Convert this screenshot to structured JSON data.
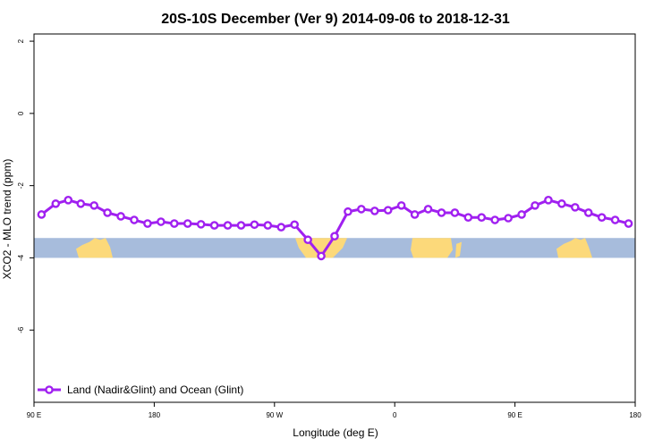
{
  "chart_data": {
    "type": "line",
    "title": "20S-10S December (Ver 9)   2014-09-06 to 2018-12-31",
    "xlabel": "Longitude (deg E)",
    "ylabel": "XCO2 - MLO trend (ppm)",
    "xlim": [
      0,
      360
    ],
    "ylim": [
      -8,
      2.2
    ],
    "x_ticks": [
      {
        "value": 0,
        "label": "90 E"
      },
      {
        "value": 72,
        "label": "180"
      },
      {
        "value": 144,
        "label": "90 W"
      },
      {
        "value": 216,
        "label": "0"
      },
      {
        "value": 288,
        "label": "90 E"
      },
      {
        "value": 360,
        "label": "180"
      }
    ],
    "y_ticks": [
      2,
      0,
      -2,
      -4,
      -6
    ],
    "grid": false,
    "legend_position": "bottom-left",
    "series": [
      {
        "name": "Land (Nadir&Glint) and Ocean (Glint)",
        "color": "#a020f0",
        "x": [
          4.5,
          13,
          20.5,
          28,
          36,
          44,
          52,
          60,
          68,
          76,
          84,
          92,
          100,
          108,
          116,
          124,
          132,
          140,
          148,
          156,
          164,
          172,
          180,
          188,
          196,
          204,
          212,
          220,
          228,
          236,
          244,
          252,
          260,
          268,
          276,
          284,
          292,
          300,
          308,
          316,
          324,
          332,
          340,
          348,
          356
        ],
        "y": [
          -2.8,
          -2.5,
          -2.4,
          -2.5,
          -2.55,
          -2.75,
          -2.85,
          -2.95,
          -3.05,
          -3.0,
          -3.05,
          -3.05,
          -3.07,
          -3.1,
          -3.1,
          -3.1,
          -3.08,
          -3.1,
          -3.15,
          -3.08,
          -3.5,
          -3.95,
          -3.4,
          -2.72,
          -2.65,
          -2.7,
          -2.68,
          -2.55,
          -2.8,
          -2.65,
          -2.75,
          -2.75,
          -2.88,
          -2.88,
          -2.95,
          -2.9,
          -2.8,
          -2.55,
          -2.4,
          -2.5,
          -2.6,
          -2.75,
          -2.88,
          -2.95,
          -3.05
        ]
      }
    ],
    "map_strip": {
      "ocean_color": "#a7bcdc",
      "land_color": "#fcd97a",
      "y_range": [
        -3.45,
        -4.0
      ]
    }
  }
}
